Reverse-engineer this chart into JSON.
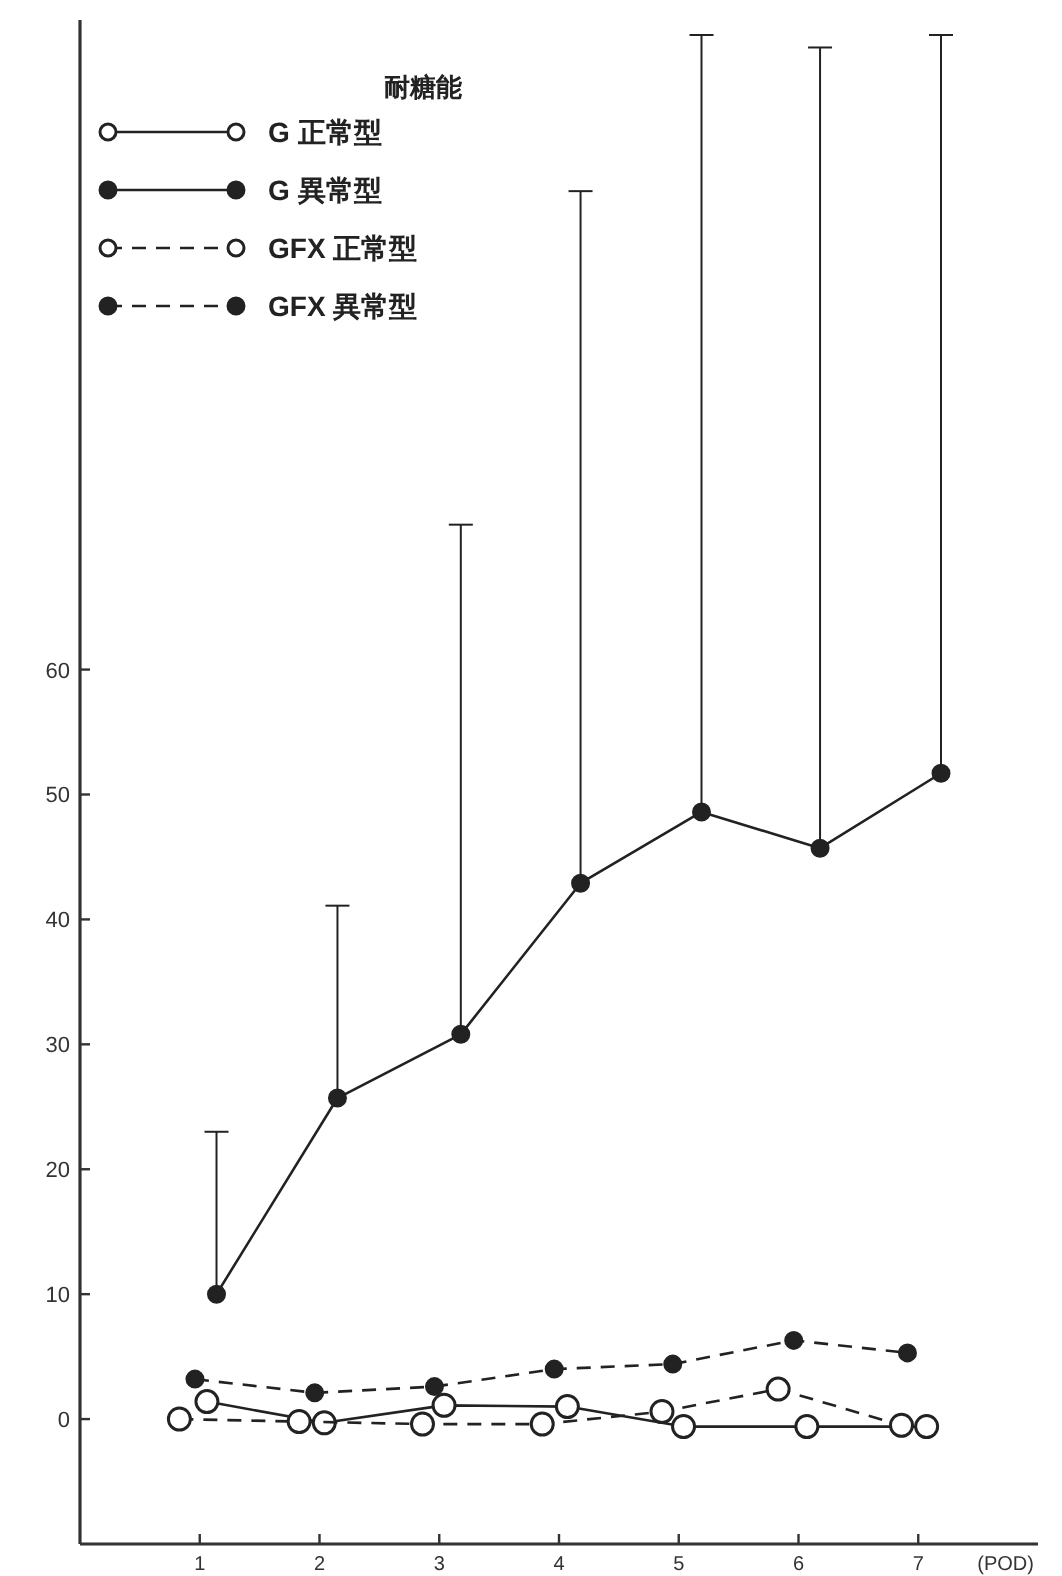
{
  "chart_data": {
    "type": "line",
    "legend_title": "耐糖能",
    "xlabel": "(POD)",
    "xlim": [
      0,
      8
    ],
    "xticks": [
      1,
      2,
      3,
      4,
      5,
      6,
      7
    ],
    "ylim": [
      -10,
      112
    ],
    "yticks": [
      0,
      10,
      20,
      30,
      40,
      50,
      60
    ],
    "grid": false,
    "legend": "top left",
    "marker": "circle",
    "series": [
      {
        "name": "G 正常型",
        "color": "#ffffff",
        "line_style": "solid",
        "x": [
          1.06,
          2.04,
          3.04,
          4.07,
          5.04,
          6.07,
          7.07
        ],
        "values": [
          1.4,
          -0.3,
          1.1,
          1.0,
          -0.6,
          -0.6,
          -0.6
        ]
      },
      {
        "name": "G 異常型",
        "color": "#222222",
        "line_style": "solid",
        "x": [
          1.14,
          2.15,
          3.18,
          4.18,
          5.19,
          6.18,
          7.19
        ],
        "values": [
          10.0,
          25.7,
          30.8,
          42.9,
          48.6,
          45.7,
          51.7
        ],
        "errors": [
          [
            10.0,
            23.0
          ],
          [
            25.7,
            41.1
          ],
          [
            30.8,
            71.6
          ],
          [
            42.9,
            98.3
          ],
          [
            48.6,
            110.8
          ],
          [
            45.7,
            109.8
          ],
          [
            51.7,
            110.8
          ]
        ]
      },
      {
        "name": "GFX 正常型",
        "color": "#ffffff",
        "line_style": "dashed",
        "x": [
          0.83,
          1.83,
          2.86,
          3.86,
          4.86,
          5.83,
          6.86
        ],
        "values": [
          0.0,
          -0.2,
          -0.4,
          -0.4,
          0.6,
          2.4,
          -0.5
        ]
      },
      {
        "name": "GFX 異常型",
        "color": "#222222",
        "line_style": "dashed",
        "x": [
          0.96,
          1.96,
          2.96,
          3.96,
          4.95,
          5.96,
          6.91
        ],
        "values": [
          3.2,
          2.1,
          2.6,
          4.0,
          4.4,
          6.3,
          5.3
        ]
      }
    ]
  }
}
